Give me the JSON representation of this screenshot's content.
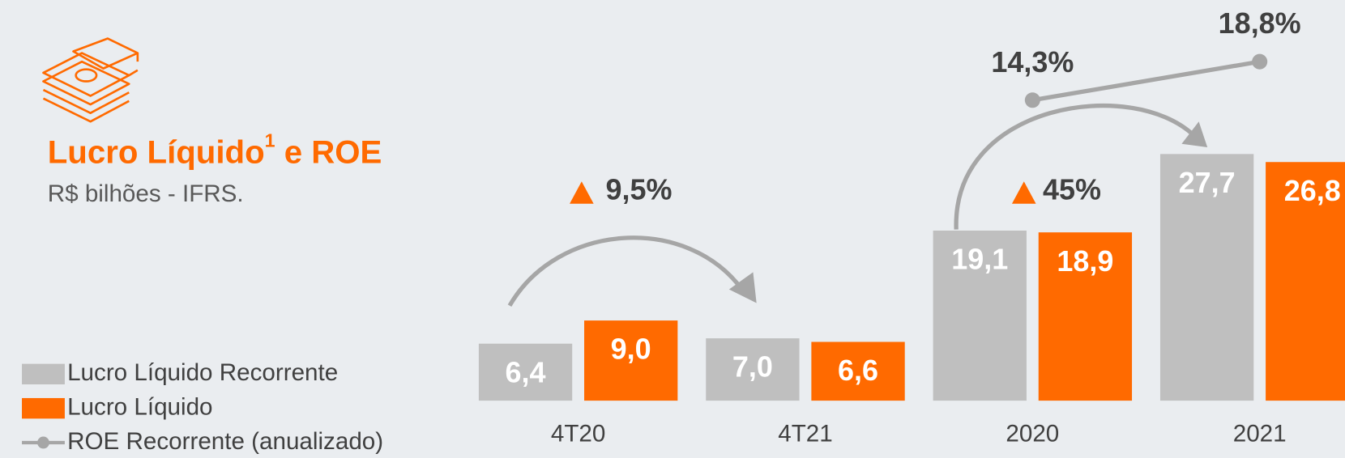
{
  "chart_data": {
    "type": "bar",
    "title": "Lucro Líquido",
    "title_footnote": "1",
    "title_suffix": " e ROE",
    "subtitle": "R$ bilhões - IFRS.",
    "categories": [
      "4T20",
      "4T21",
      "2020",
      "2021"
    ],
    "series": [
      {
        "name": "Lucro Líquido Recorrente",
        "color": "#bfbfbf",
        "values": [
          6.4,
          7.0,
          19.1,
          27.7
        ],
        "value_labels": [
          "6,4",
          "7,0",
          "19,1",
          "27,7"
        ]
      },
      {
        "name": "Lucro Líquido",
        "color": "#ff6a00",
        "values": [
          9.0,
          6.6,
          18.9,
          26.8
        ],
        "value_labels": [
          "9,0",
          "6,6",
          "18,9",
          "26,8"
        ]
      },
      {
        "name": "ROE Recorrente (anualizado)",
        "type": "line",
        "axis": "y2",
        "color": "#a6a6a6",
        "values": [
          null,
          null,
          14.3,
          18.8
        ],
        "value_labels": [
          null,
          null,
          "14,3%",
          "18,8%"
        ]
      }
    ],
    "ylim": [
      0,
      30
    ],
    "y2lim": [
      0,
      20
    ],
    "annotations": [
      {
        "text": "9,5%"
      },
      {
        "text": "45%"
      }
    ]
  }
}
